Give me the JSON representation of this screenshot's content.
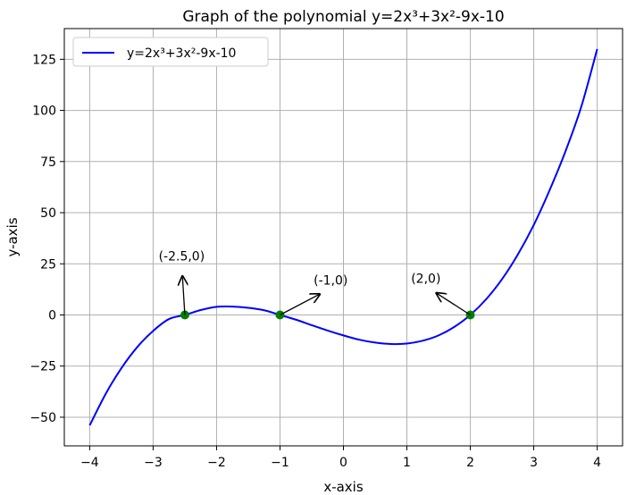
{
  "chart_data": {
    "type": "line",
    "title": "Graph of the polynomial y=2x³+3x²-9x-10",
    "xlabel": "x-axis",
    "ylabel": "y-axis",
    "xlim": [
      -4.4,
      4.4
    ],
    "ylim": [
      -64,
      140
    ],
    "xticks": [
      -4,
      -3,
      -2,
      -1,
      0,
      1,
      2,
      3,
      4
    ],
    "xtick_labels": [
      "−4",
      "−3",
      "−2",
      "−1",
      "0",
      "1",
      "2",
      "3",
      "4"
    ],
    "yticks": [
      -50,
      -25,
      0,
      25,
      50,
      75,
      100,
      125
    ],
    "ytick_labels": [
      "−50",
      "−25",
      "0",
      "25",
      "50",
      "75",
      "100",
      "125"
    ],
    "grid": true,
    "legend_position": "top-left",
    "series": [
      {
        "name": "y=2x³+3x²-9x-10",
        "color": "#0000ff",
        "x": [
          -4,
          -3.75,
          -3.5,
          -3.25,
          -3,
          -2.75,
          -2.5,
          -2.25,
          -2,
          -1.75,
          -1.5,
          -1.25,
          -1,
          -0.75,
          -0.5,
          -0.25,
          0,
          0.25,
          0.5,
          0.75,
          1,
          1.25,
          1.5,
          1.75,
          2,
          2.25,
          2.5,
          2.75,
          3,
          3.25,
          3.5,
          3.75,
          4
        ],
        "y": [
          -54,
          -38.7,
          -26,
          -15.7,
          -7.8,
          -2.0,
          0,
          2.4,
          4.0,
          4.1,
          3.5,
          2.3,
          0,
          -2.3,
          -5.0,
          -7.6,
          -10.0,
          -12.1,
          -13.5,
          -14.2,
          -14.0,
          -12.6,
          -10.0,
          -5.8,
          0,
          7.7,
          17.5,
          29.6,
          44.0,
          61.0,
          80.0,
          101.9,
          130.0
        ]
      }
    ],
    "points": {
      "color": "#008000",
      "x": [
        -2.5,
        -1,
        2
      ],
      "y": [
        0,
        0,
        0
      ]
    },
    "annotations": [
      {
        "text": "(-2.5,0)",
        "x": -2.5,
        "y": 0,
        "text_x": -2.55,
        "text_y": 25
      },
      {
        "text": "(-1,0)",
        "x": -1,
        "y": 0,
        "text_x": -0.2,
        "text_y": 13
      },
      {
        "text": "(2,0)",
        "x": 2,
        "y": 0,
        "text_x": 1.3,
        "text_y": 14
      }
    ]
  }
}
